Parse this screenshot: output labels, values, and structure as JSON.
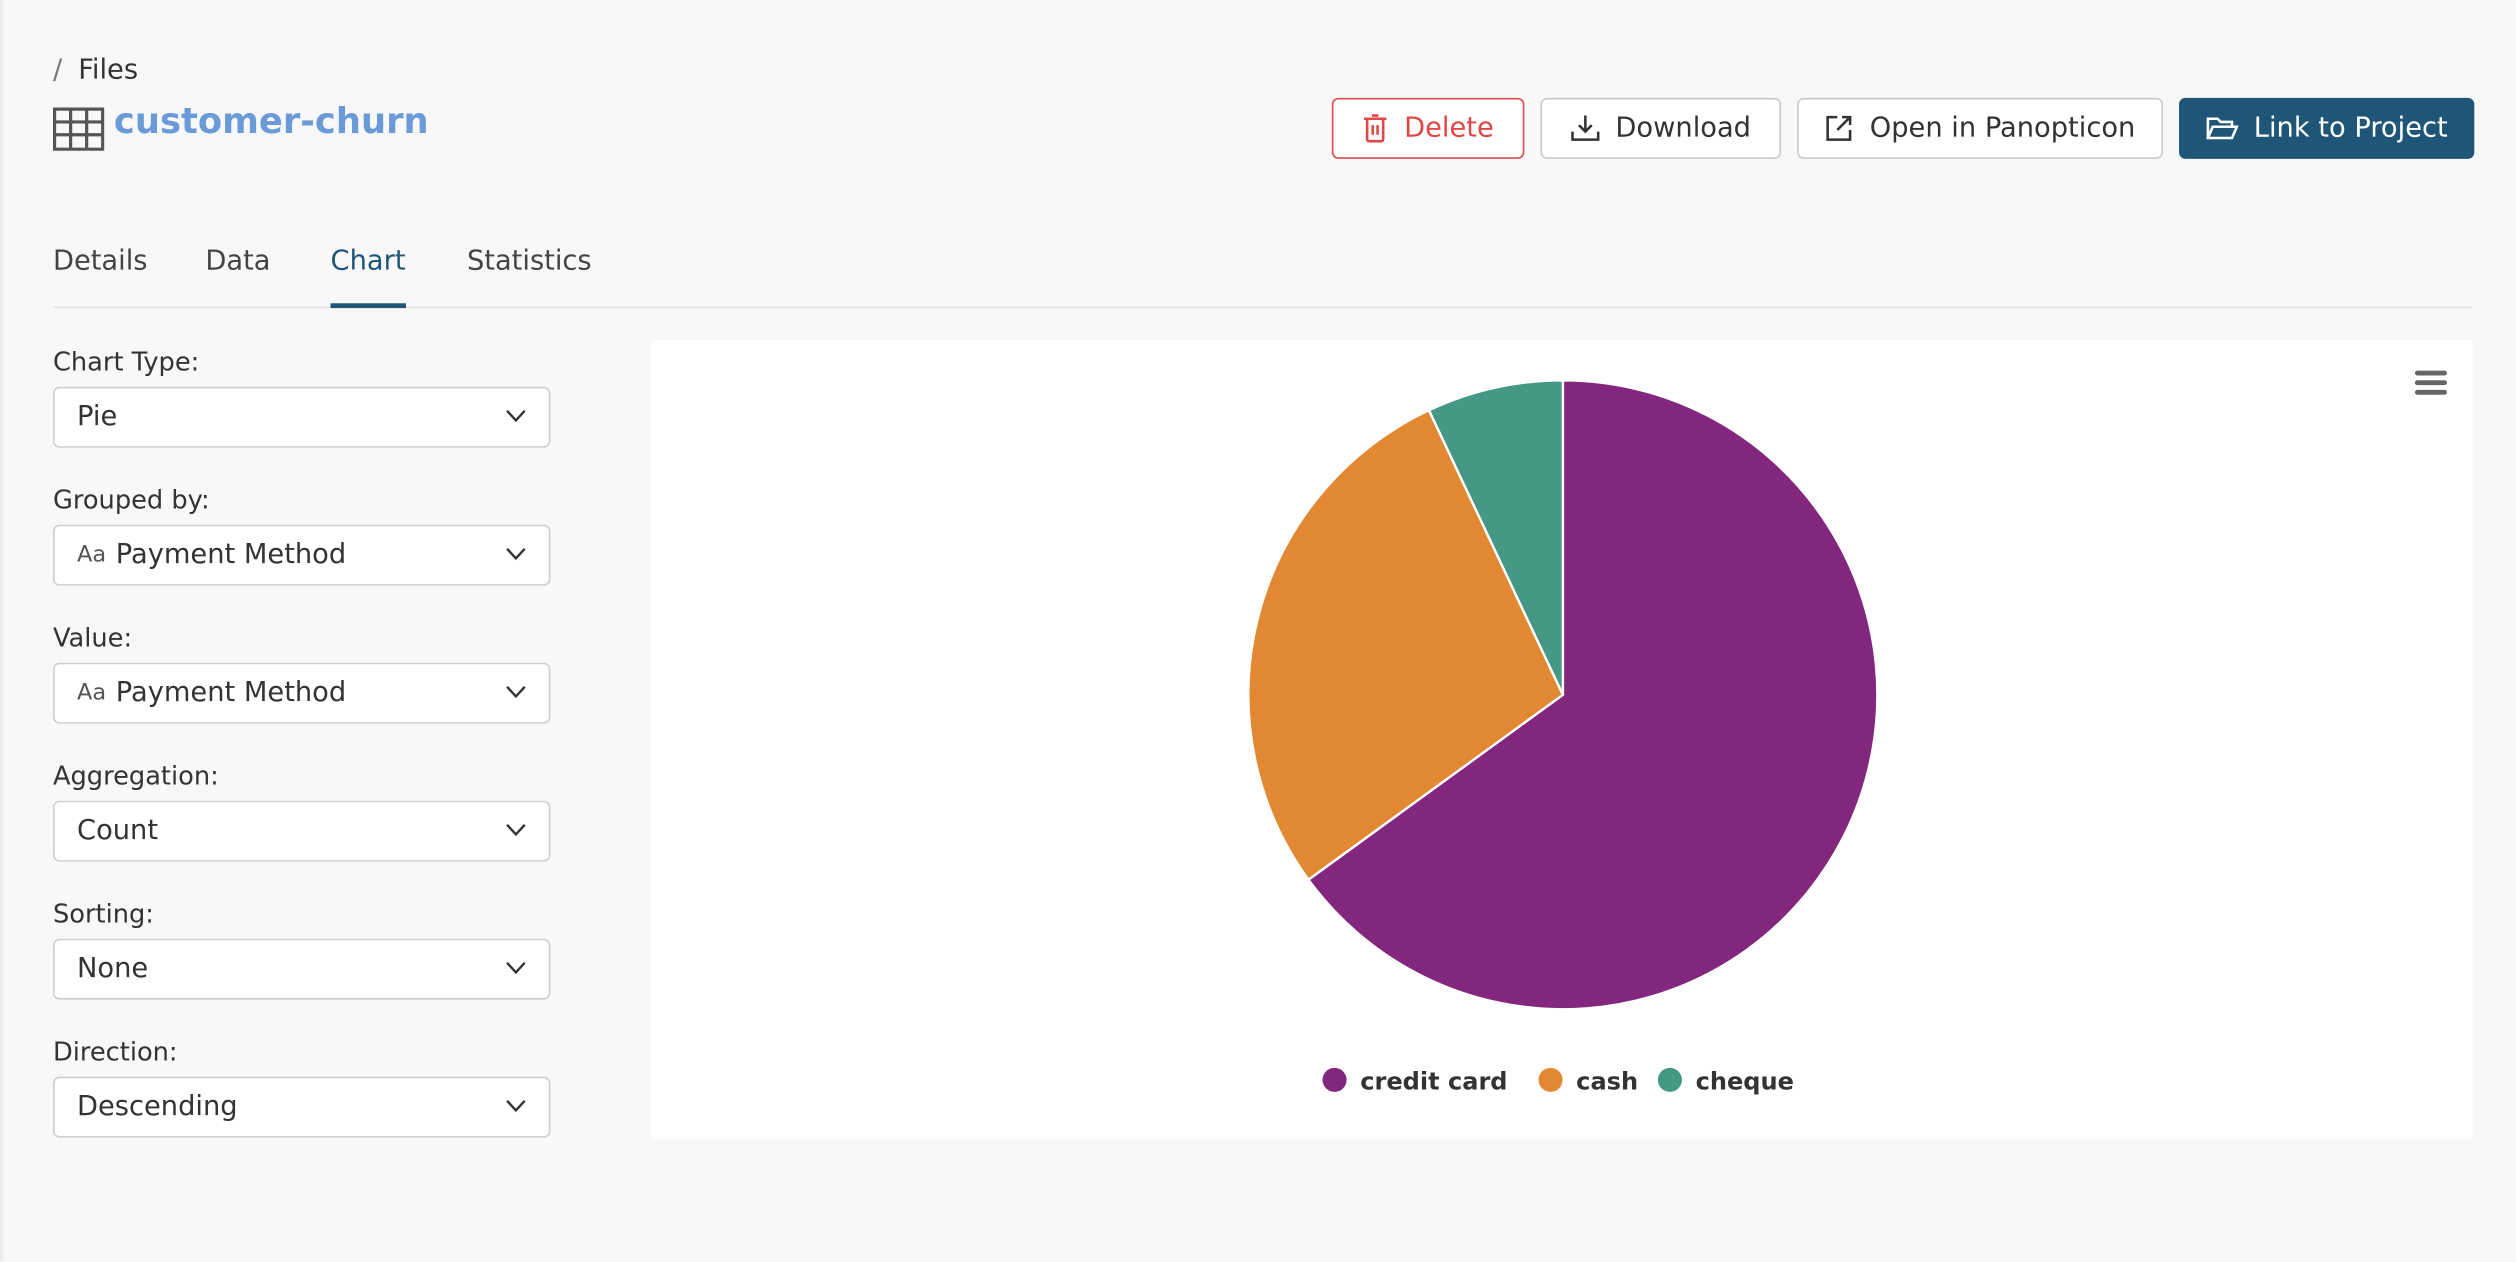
{
  "breadcrumb": {
    "separator": "/",
    "current": "Files"
  },
  "title": "customer-churn",
  "actions": [
    "Delete",
    "Download",
    "Open in Panopticon",
    "Link to Project"
  ],
  "tabs": {
    "items": [
      "Details",
      "Data",
      "Chart",
      "Statistics"
    ],
    "active": 2
  },
  "fields": [
    {
      "label": "Chart Type:",
      "value": "Pie"
    },
    {
      "label": "Grouped by:",
      "icon": "Aa",
      "value": "Payment Method"
    },
    {
      "label": "Value:",
      "icon": "Aa",
      "value": "Payment Method"
    },
    {
      "label": "Aggregation:",
      "value": "Count"
    },
    {
      "label": "Sorting:",
      "value": "None"
    },
    {
      "label": "Direction:",
      "value": "Descending"
    }
  ],
  "chart_data": {
    "type": "pie",
    "categories": [
      "credit card",
      "cash",
      "cheque"
    ],
    "values": [
      65,
      28,
      7
    ],
    "colors": [
      "#82267e",
      "#e28832",
      "#469886"
    ],
    "legend": "bottom"
  }
}
